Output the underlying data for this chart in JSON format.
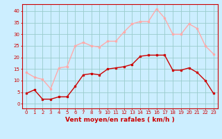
{
  "hours": [
    0,
    1,
    2,
    3,
    4,
    5,
    6,
    7,
    8,
    9,
    10,
    11,
    12,
    13,
    14,
    15,
    16,
    17,
    18,
    19,
    20,
    21,
    22,
    23
  ],
  "wind_avg": [
    4.5,
    6,
    2,
    2,
    3,
    3,
    7.5,
    12.5,
    13,
    12.5,
    15,
    15.5,
    16,
    17,
    20.5,
    21,
    21,
    21,
    14.5,
    14.5,
    15.5,
    13.5,
    10,
    4.5
  ],
  "wind_gust": [
    13.5,
    11.5,
    10.5,
    6.5,
    15.5,
    16,
    25,
    26.5,
    25,
    24.5,
    27,
    27,
    31,
    34.5,
    35.5,
    35.5,
    41,
    37,
    30,
    30,
    34.5,
    32.5,
    25,
    21.5
  ],
  "avg_color": "#cc0000",
  "gust_color": "#ffaaaa",
  "bg_color": "#cceeff",
  "grid_color": "#99cccc",
  "xlabel": "Vent moyen/en rafales ( km/h )",
  "ylim": [
    -2,
    43
  ],
  "yticks": [
    0,
    5,
    10,
    15,
    20,
    25,
    30,
    35,
    40
  ],
  "marker": "s",
  "markersize": 2.0,
  "linewidth": 1.0,
  "xlabel_color": "#cc0000",
  "tick_color": "#cc0000",
  "spine_color": "#cc0000",
  "tick_fontsize": 5.0,
  "xlabel_fontsize": 6.5
}
